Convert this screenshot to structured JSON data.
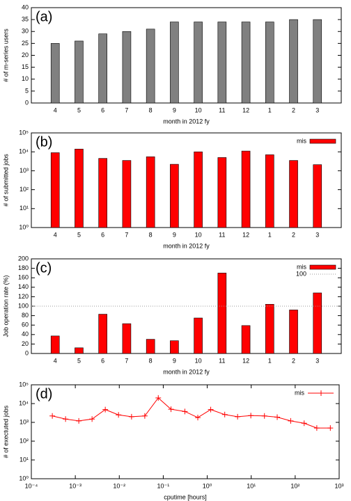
{
  "chart_data": [
    {
      "type": "bar",
      "annotation": "(a)",
      "ylabel": "# of m-series users",
      "xlabel": "month in 2012 fy",
      "categories": [
        "4",
        "5",
        "6",
        "7",
        "8",
        "9",
        "10",
        "11",
        "12",
        "1",
        "2",
        "3"
      ],
      "values": [
        25,
        26,
        29,
        30,
        31,
        34,
        34,
        34,
        34,
        34,
        35,
        35
      ],
      "color": "#808080",
      "ylim": [
        0,
        40
      ],
      "yticks": [
        0,
        5,
        10,
        15,
        20,
        25,
        30,
        35,
        40
      ]
    },
    {
      "type": "bar",
      "annotation": "(b)",
      "ylabel": "# of submitted jobs",
      "xlabel": "month in 2012 fy",
      "categories": [
        "4",
        "5",
        "6",
        "7",
        "8",
        "9",
        "10",
        "11",
        "12",
        "1",
        "2",
        "3"
      ],
      "series": [
        {
          "name": "mis",
          "color": "#ff0000",
          "values": [
            9000,
            14000,
            4500,
            3500,
            5500,
            2200,
            10000,
            5000,
            11000,
            7000,
            3500,
            2100
          ]
        }
      ],
      "ylog": true,
      "ylim": [
        1,
        100000
      ],
      "yticks": [
        {
          "value": 1,
          "label": "10⁰"
        },
        {
          "value": 10,
          "label": "10¹"
        },
        {
          "value": 100,
          "label": "10²"
        },
        {
          "value": 1000,
          "label": "10³"
        },
        {
          "value": 10000,
          "label": "10⁴"
        },
        {
          "value": 100000,
          "label": "10⁵"
        }
      ],
      "legend": "upper right"
    },
    {
      "type": "bar",
      "annotation": "(c)",
      "ylabel": "Job operation rate (%)",
      "xlabel": "month in 2012 fy",
      "categories": [
        "4",
        "5",
        "6",
        "7",
        "8",
        "9",
        "10",
        "11",
        "12",
        "1",
        "2",
        "3"
      ],
      "series": [
        {
          "name": "mis",
          "color": "#ff0000",
          "values": [
            37,
            12,
            83,
            63,
            30,
            27,
            75,
            170,
            59,
            104,
            92,
            128
          ]
        }
      ],
      "hline": 100,
      "ylim": [
        0,
        200
      ],
      "yticks": [
        0,
        20,
        40,
        60,
        80,
        100,
        120,
        140,
        160,
        180,
        200
      ],
      "legend": "upper right"
    },
    {
      "type": "line",
      "annotation": "(d)",
      "ylabel": "# of exectuted jobs",
      "xlabel": "cputime [hours]",
      "x": [
        0.0003,
        0.0006,
        0.0012,
        0.0024,
        0.0048,
        0.0096,
        0.019,
        0.038,
        0.077,
        0.15,
        0.31,
        0.61,
        1.2,
        2.5,
        4.9,
        9.8,
        20,
        39,
        79,
        160,
        310,
        630
      ],
      "series": [
        {
          "name": "mis",
          "color": "#ff0000",
          "values": [
            2200,
            1500,
            1200,
            1500,
            4800,
            2500,
            2000,
            2200,
            20000,
            5000,
            3800,
            1800,
            4800,
            2600,
            2000,
            2300,
            2200,
            1900,
            1200,
            900,
            500,
            500
          ]
        }
      ],
      "xlog": true,
      "xlim": [
        0.0001,
        1000
      ],
      "xticks": [
        {
          "value": 0.0001,
          "label": "10⁻⁴"
        },
        {
          "value": 0.001,
          "label": "10⁻³"
        },
        {
          "value": 0.01,
          "label": "10⁻²"
        },
        {
          "value": 0.1,
          "label": "10⁻¹"
        },
        {
          "value": 1,
          "label": "10⁰"
        },
        {
          "value": 10,
          "label": "10¹"
        },
        {
          "value": 100,
          "label": "10²"
        },
        {
          "value": 1000,
          "label": "10³"
        }
      ],
      "ylog": true,
      "ylim": [
        1,
        100000
      ],
      "yticks": [
        {
          "value": 1,
          "label": "10⁰"
        },
        {
          "value": 10,
          "label": "10¹"
        },
        {
          "value": 100,
          "label": "10²"
        },
        {
          "value": 1000,
          "label": "10³"
        },
        {
          "value": 10000,
          "label": "10⁴"
        },
        {
          "value": 100000,
          "label": "10⁵"
        }
      ],
      "legend": "upper right"
    }
  ]
}
